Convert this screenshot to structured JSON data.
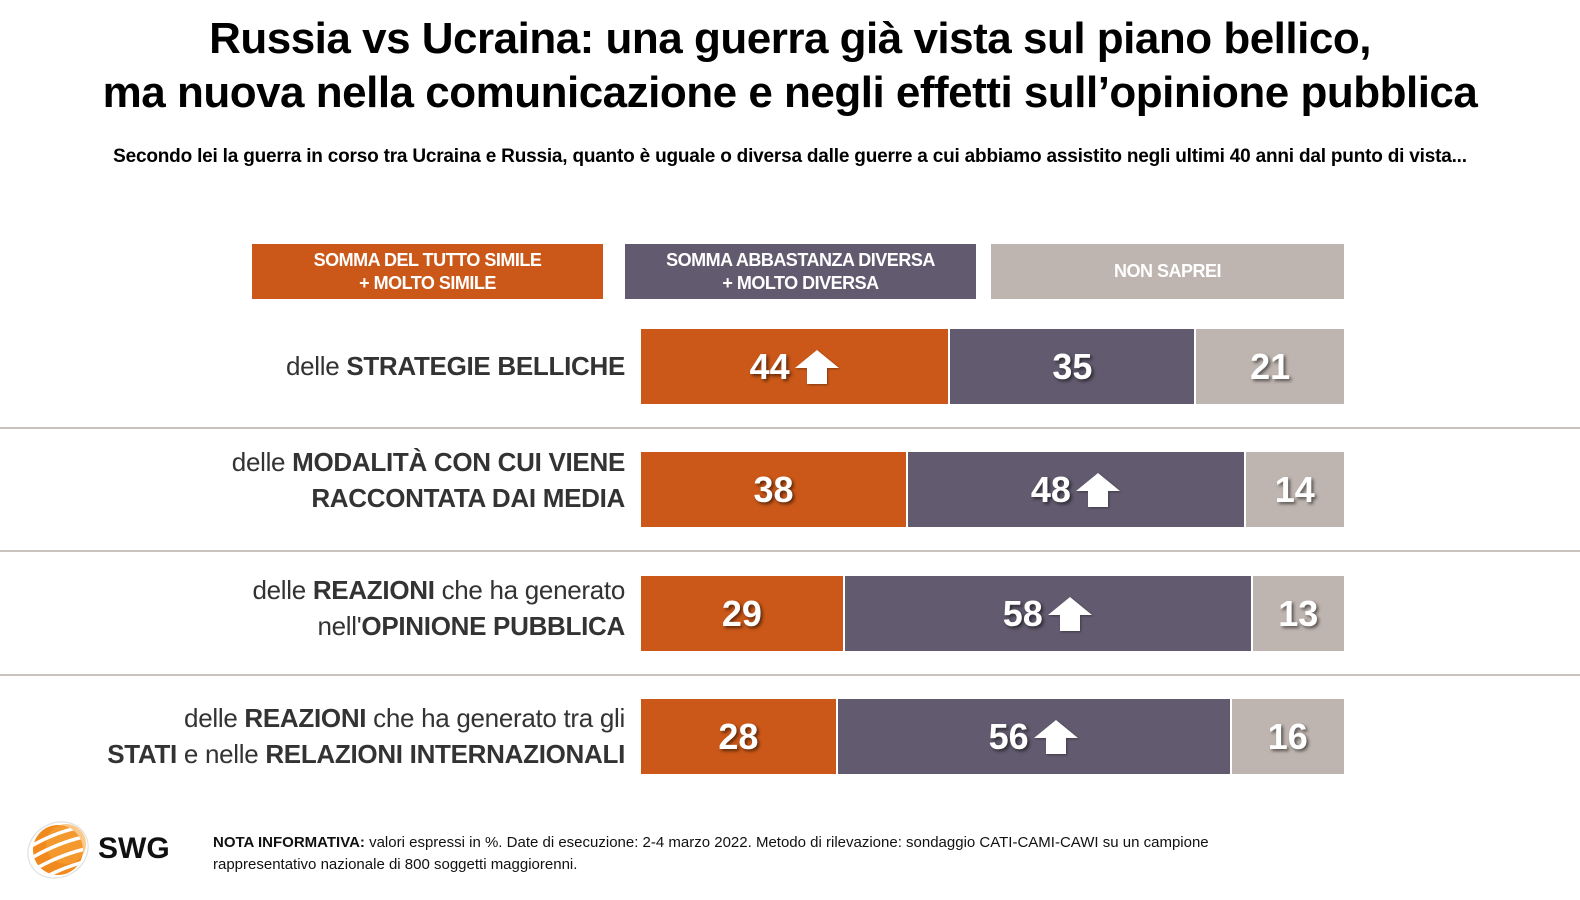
{
  "header": {
    "title_line1": "Russia vs Ucraina: una guerra già vista sul piano bellico,",
    "title_line2": "ma nuova nella comunicazione e negli effetti sull’opinione pubblica",
    "subtitle": "Secondo lei la guerra in corso tra Ucraina e Russia, quanto è uguale o diversa dalle guerre a cui abbiamo assistito negli ultimi 40 anni dal punto di vista..."
  },
  "colors": {
    "simile": "#cb5818",
    "diversa": "#625a6e",
    "non_saprei": "#bfb5b0"
  },
  "chart_data": {
    "type": "bar",
    "orientation": "horizontal",
    "stacked": true,
    "percent": true,
    "title": "Russia vs Ucraina: una guerra già vista sul piano bellico, ma nuova nella comunicazione e negli effetti sull’opinione pubblica",
    "legend": {
      "placement": "top",
      "entries": [
        {
          "line1": "SOMMA DEL TUTTO SIMILE",
          "line2": "+ MOLTO SIMILE"
        },
        {
          "line1": "SOMMA ABBASTANZA DIVERSA",
          "line2": "+ MOLTO DIVERSA"
        },
        {
          "line1": "NON SAPREI",
          "line2": ""
        }
      ]
    },
    "categories": [
      {
        "parts": [
          {
            "t": "delle ",
            "b": false
          },
          {
            "t": "STRATEGIE BELLICHE",
            "b": true
          }
        ]
      },
      {
        "parts": [
          {
            "t": "delle ",
            "b": false
          },
          {
            "t": "MODALITÀ CON CUI VIENE",
            "b": true
          },
          {
            "br": true
          },
          {
            "t": "RACCONTATA DAI MEDIA",
            "b": true
          }
        ]
      },
      {
        "parts": [
          {
            "t": "delle ",
            "b": false
          },
          {
            "t": "REAZIONI",
            "b": true
          },
          {
            "t": " che ha generato",
            "b": false
          },
          {
            "br": true
          },
          {
            "t": "nell'",
            "b": false
          },
          {
            "t": "OPINIONE PUBBLICA",
            "b": true
          }
        ]
      },
      {
        "parts": [
          {
            "t": "delle ",
            "b": false
          },
          {
            "t": "REAZIONI",
            "b": true
          },
          {
            "t": " che ha generato tra gli",
            "b": false
          },
          {
            "br": true
          },
          {
            "t": "STATI",
            "b": true
          },
          {
            "t": " e nelle ",
            "b": false
          },
          {
            "t": "RELAZIONI INTERNAZIONALI",
            "b": true
          }
        ]
      }
    ],
    "series": [
      {
        "name": "Somma del tutto simile + molto simile",
        "values": [
          44,
          38,
          29,
          28
        ],
        "up_arrow": [
          true,
          false,
          false,
          false
        ]
      },
      {
        "name": "Somma abbastanza diversa + molto diversa",
        "values": [
          35,
          48,
          58,
          56
        ],
        "up_arrow": [
          false,
          true,
          true,
          true
        ]
      },
      {
        "name": "Non saprei",
        "values": [
          21,
          14,
          13,
          16
        ],
        "up_arrow": [
          false,
          false,
          false,
          false
        ]
      }
    ],
    "xlim": [
      0,
      100
    ]
  },
  "footer": {
    "note_label": "NOTA INFORMATIVA:",
    "note_text": " valori espressi in %. Date di esecuzione: 2-4 marzo 2022. Metodo di rilevazione: sondaggio CATI-CAMI-CAWI su un campione rappresentativo nazionale di 800 soggetti maggiorenni.",
    "logo_text": "SWG",
    "logo_icon": "swg-globe-icon"
  }
}
